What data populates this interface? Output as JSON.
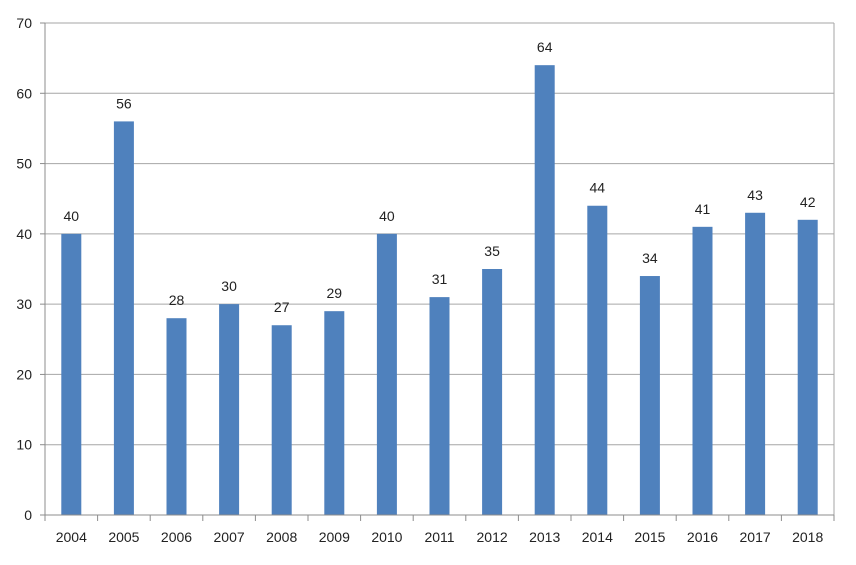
{
  "chart_data": {
    "type": "bar",
    "categories": [
      "2004",
      "2005",
      "2006",
      "2007",
      "2008",
      "2009",
      "2010",
      "2011",
      "2012",
      "2013",
      "2014",
      "2015",
      "2016",
      "2017",
      "2018"
    ],
    "values": [
      40,
      56,
      28,
      30,
      27,
      29,
      40,
      31,
      35,
      64,
      44,
      34,
      41,
      43,
      42
    ],
    "data_labels": [
      "40",
      "56",
      "28",
      "30",
      "27",
      "29",
      "40",
      "31",
      "35",
      "64",
      "44",
      "34",
      "41",
      "43",
      "42"
    ],
    "title": "",
    "xlabel": "",
    "ylabel": "",
    "ylim": [
      0,
      70
    ],
    "yticks": [
      "0",
      "10",
      "20",
      "30",
      "40",
      "50",
      "60",
      "70"
    ],
    "grid": true,
    "legend": "none"
  },
  "colors": {
    "bar": "#4f81bd",
    "grid": "#a6a6a6",
    "axis": "#8c8c8c",
    "text": "#222222"
  }
}
